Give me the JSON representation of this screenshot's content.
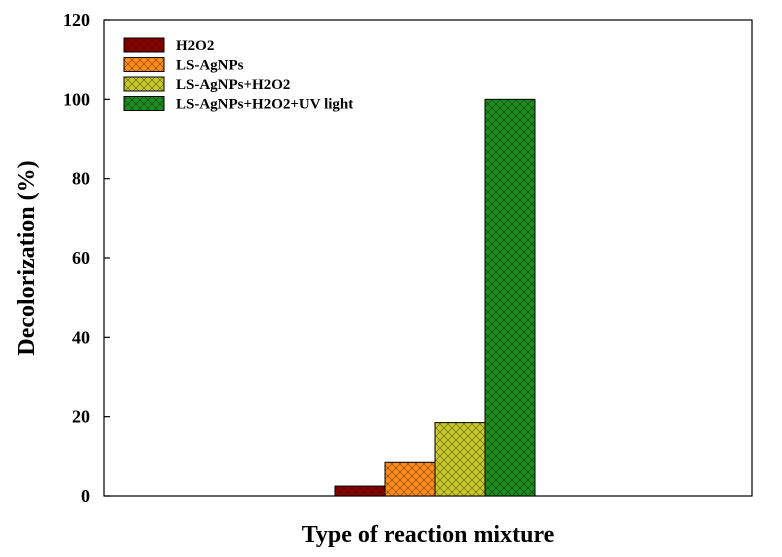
{
  "chart_data": {
    "type": "bar",
    "title": "",
    "xlabel": "Type of reaction mixture",
    "ylabel": "Decolorization (%)",
    "ylim": [
      0,
      120
    ],
    "yticks": [
      0,
      20,
      40,
      60,
      80,
      100,
      120
    ],
    "grid": false,
    "legend_position": "top-left",
    "categories": [
      ""
    ],
    "series": [
      {
        "name": "H2O2",
        "values": [
          2.5
        ],
        "color": "#8B0000"
      },
      {
        "name": "LS-AgNPs",
        "values": [
          8.5
        ],
        "color": "#FF8C1A"
      },
      {
        "name": "LS-AgNPs+H2O2",
        "values": [
          18.5
        ],
        "color": "#C8C82A"
      },
      {
        "name": "LS-AgNPs+H2O2+UV light",
        "values": [
          100
        ],
        "color": "#1E8C1E"
      }
    ]
  }
}
